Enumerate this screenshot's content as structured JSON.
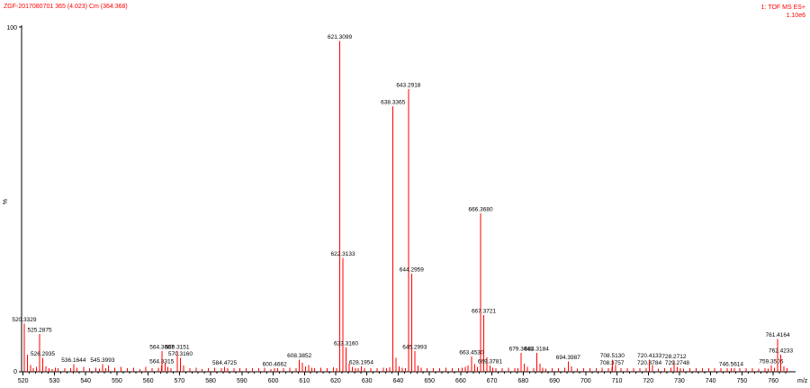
{
  "chart_data": {
    "type": "bar",
    "subtype": "mass-spectrum-stick-plot",
    "header_left": "ZGF-2017080701 365 (4.023) Cm (364:368)",
    "header_right_line1": "1: TOF MS ES+",
    "header_right_line2": "1.10e6",
    "xlabel": "m/z",
    "ylabel": "%",
    "y_top_label": "100",
    "y_bottom_label": "0",
    "xlim": [
      519.5,
      766
    ],
    "ylim": [
      0,
      100
    ],
    "x_ticks": [
      520,
      530,
      540,
      550,
      560,
      570,
      580,
      590,
      600,
      610,
      620,
      630,
      640,
      650,
      660,
      670,
      680,
      690,
      700,
      710,
      720,
      730,
      740,
      750,
      760
    ],
    "x_minor_tick_step": 2,
    "peak_color": "#ff0000",
    "axis_color": "#000000",
    "label_color": "#000000",
    "labeled_peaks": [
      {
        "mz": 520.3329,
        "intensity": 14,
        "label": "520.3329"
      },
      {
        "mz": 525.2875,
        "intensity": 11,
        "label": "525.2875"
      },
      {
        "mz": 526.2935,
        "intensity": 4,
        "label": "526.2935"
      },
      {
        "mz": 536.1644,
        "intensity": 2.2,
        "label": "536.1644"
      },
      {
        "mz": 545.3993,
        "intensity": 2.2,
        "label": "545.3993"
      },
      {
        "mz": 564.3315,
        "intensity": 1.8,
        "label": "564.3315"
      },
      {
        "mz": 564.3607,
        "intensity": 6,
        "label": "564.3607"
      },
      {
        "mz": 569.3151,
        "intensity": 6,
        "label": "569.3151"
      },
      {
        "mz": 570.316,
        "intensity": 4,
        "label": "570.3160"
      },
      {
        "mz": 584.4725,
        "intensity": 1.4,
        "label": "584.4725"
      },
      {
        "mz": 600.4662,
        "intensity": 1.1,
        "label": "600.4662"
      },
      {
        "mz": 608.3852,
        "intensity": 3.5,
        "label": "608.3852"
      },
      {
        "mz": 621.3099,
        "intensity": 96,
        "label": "621.3099"
      },
      {
        "mz": 622.3133,
        "intensity": 33,
        "label": "622.3133"
      },
      {
        "mz": 623.316,
        "intensity": 7,
        "label": "623.3160"
      },
      {
        "mz": 628.1954,
        "intensity": 1.6,
        "label": "628.1954"
      },
      {
        "mz": 638.3365,
        "intensity": 77,
        "label": "638.3365"
      },
      {
        "mz": 643.2918,
        "intensity": 82,
        "label": "643.2918"
      },
      {
        "mz": 644.2959,
        "intensity": 28.5,
        "label": "644.2959"
      },
      {
        "mz": 645.2993,
        "intensity": 6,
        "label": "645.2993"
      },
      {
        "mz": 663.453,
        "intensity": 4.5,
        "label": "663.4530"
      },
      {
        "mz": 666.368,
        "intensity": 46,
        "label": "666.3680"
      },
      {
        "mz": 667.3721,
        "intensity": 16.5,
        "label": "667.3721"
      },
      {
        "mz": 669.3781,
        "intensity": 1.8,
        "label": "669.3781"
      },
      {
        "mz": 679.3641,
        "intensity": 5.5,
        "label": "679.3641"
      },
      {
        "mz": 684.3184,
        "intensity": 5.5,
        "label": "684.3184"
      },
      {
        "mz": 694.3987,
        "intensity": 3,
        "label": "694.3987"
      },
      {
        "mz": 708.3757,
        "intensity": 1.4,
        "label": "708.3757"
      },
      {
        "mz": 708.513,
        "intensity": 3.5,
        "label": "708.5130"
      },
      {
        "mz": 720.3784,
        "intensity": 1.4,
        "label": "720.3784"
      },
      {
        "mz": 720.4133,
        "intensity": 3.5,
        "label": "720.4133"
      },
      {
        "mz": 728.2712,
        "intensity": 3.2,
        "label": "728.2712"
      },
      {
        "mz": 729.2748,
        "intensity": 1.5,
        "label": "729.2748"
      },
      {
        "mz": 746.5614,
        "intensity": 1.1,
        "label": "746.5614"
      },
      {
        "mz": 759.3506,
        "intensity": 1.8,
        "label": "759.3506"
      },
      {
        "mz": 761.4164,
        "intensity": 9.5,
        "label": "761.4164"
      },
      {
        "mz": 762.4233,
        "intensity": 5,
        "label": "762.4233"
      }
    ],
    "unlabeled_peaks": [
      [
        521.34,
        5
      ],
      [
        522.34,
        2
      ],
      [
        523.3,
        1
      ],
      [
        524.3,
        1.4
      ],
      [
        527.3,
        1.6
      ],
      [
        528.3,
        1
      ],
      [
        529.3,
        0.8
      ],
      [
        530.3,
        1.2
      ],
      [
        531.2,
        1
      ],
      [
        533.3,
        1.1
      ],
      [
        535.2,
        1
      ],
      [
        537.2,
        1.2
      ],
      [
        539.3,
        1.4
      ],
      [
        541.3,
        1.1
      ],
      [
        543.3,
        1.2
      ],
      [
        544.4,
        0.9
      ],
      [
        546.4,
        1
      ],
      [
        547.3,
        1.8
      ],
      [
        549.3,
        1.2
      ],
      [
        551.3,
        1.5
      ],
      [
        553.3,
        1.1
      ],
      [
        555.3,
        1.2
      ],
      [
        557.3,
        0.8
      ],
      [
        559.3,
        1.4
      ],
      [
        561.3,
        1.1
      ],
      [
        563.3,
        1.2
      ],
      [
        565.36,
        2.6
      ],
      [
        566.36,
        1.4
      ],
      [
        567.3,
        1
      ],
      [
        571.32,
        1.8
      ],
      [
        573.3,
        1.1
      ],
      [
        575.3,
        1.2
      ],
      [
        577.3,
        0.8
      ],
      [
        579.3,
        1.1
      ],
      [
        581.3,
        1.2
      ],
      [
        583.4,
        1
      ],
      [
        585.47,
        1.1
      ],
      [
        587.4,
        1
      ],
      [
        589.3,
        1.1
      ],
      [
        591.3,
        1
      ],
      [
        593.3,
        1.1
      ],
      [
        595.4,
        1
      ],
      [
        597.3,
        1.2
      ],
      [
        599.3,
        0.8
      ],
      [
        601.47,
        1
      ],
      [
        603.3,
        1
      ],
      [
        605.3,
        1.2
      ],
      [
        607.3,
        1
      ],
      [
        609.39,
        2.6
      ],
      [
        610.39,
        1.6
      ],
      [
        611.3,
        1.9
      ],
      [
        612.3,
        1.2
      ],
      [
        613.3,
        1
      ],
      [
        615.3,
        1.2
      ],
      [
        617.3,
        1.1
      ],
      [
        619.3,
        1.3
      ],
      [
        620.3,
        1
      ],
      [
        624.32,
        2.4
      ],
      [
        625.32,
        1.4
      ],
      [
        626.3,
        1
      ],
      [
        627.2,
        1.1
      ],
      [
        629.2,
        1
      ],
      [
        631.3,
        1.1
      ],
      [
        633.3,
        1
      ],
      [
        635.3,
        1.2
      ],
      [
        636.3,
        1
      ],
      [
        637.3,
        1.3
      ],
      [
        639.34,
        4
      ],
      [
        640.34,
        1.6
      ],
      [
        641.3,
        1.2
      ],
      [
        642.3,
        1
      ],
      [
        646.3,
        1.8
      ],
      [
        647.3,
        1.2
      ],
      [
        649.3,
        1
      ],
      [
        651.3,
        1.1
      ],
      [
        653.3,
        1
      ],
      [
        655.3,
        1.2
      ],
      [
        657.3,
        1
      ],
      [
        659.3,
        1.1
      ],
      [
        660.4,
        1.2
      ],
      [
        661.4,
        1.4
      ],
      [
        662.4,
        1.8
      ],
      [
        664.45,
        2.2
      ],
      [
        665.4,
        1.4
      ],
      [
        668.38,
        4.2
      ],
      [
        670.3,
        1.2
      ],
      [
        671.3,
        1
      ],
      [
        673.3,
        1
      ],
      [
        675.3,
        1.2
      ],
      [
        677.3,
        1
      ],
      [
        678.3,
        1.1
      ],
      [
        680.37,
        2.4
      ],
      [
        681.3,
        1.4
      ],
      [
        683.3,
        1.1
      ],
      [
        685.32,
        2.4
      ],
      [
        686.3,
        1.2
      ],
      [
        687.3,
        0.9
      ],
      [
        689.3,
        1.1
      ],
      [
        691.3,
        1
      ],
      [
        693.3,
        1.2
      ],
      [
        695.4,
        1.6
      ],
      [
        697.3,
        0.9
      ],
      [
        699.3,
        1.1
      ],
      [
        701.3,
        1
      ],
      [
        703.3,
        1.1
      ],
      [
        705.3,
        1.2
      ],
      [
        707.3,
        1
      ],
      [
        709.51,
        2
      ],
      [
        711.3,
        1.1
      ],
      [
        713.3,
        1
      ],
      [
        715.3,
        1.1
      ],
      [
        717.3,
        1
      ],
      [
        719.3,
        1.1
      ],
      [
        721.41,
        2
      ],
      [
        723.3,
        0.9
      ],
      [
        725.3,
        1.1
      ],
      [
        727.3,
        1.2
      ],
      [
        730.27,
        1.1
      ],
      [
        731.3,
        0.9
      ],
      [
        733.3,
        1.1
      ],
      [
        735.3,
        1
      ],
      [
        737.3,
        1
      ],
      [
        739.3,
        1.1
      ],
      [
        741.3,
        1
      ],
      [
        743.3,
        1
      ],
      [
        745.3,
        1
      ],
      [
        747.56,
        1.1
      ],
      [
        749.3,
        1
      ],
      [
        751.3,
        1
      ],
      [
        753.3,
        1.1
      ],
      [
        755.3,
        0.9
      ],
      [
        757.3,
        1
      ],
      [
        758.3,
        0.9
      ],
      [
        760.35,
        1.2
      ],
      [
        763.42,
        1.6
      ],
      [
        764.4,
        1
      ]
    ]
  }
}
